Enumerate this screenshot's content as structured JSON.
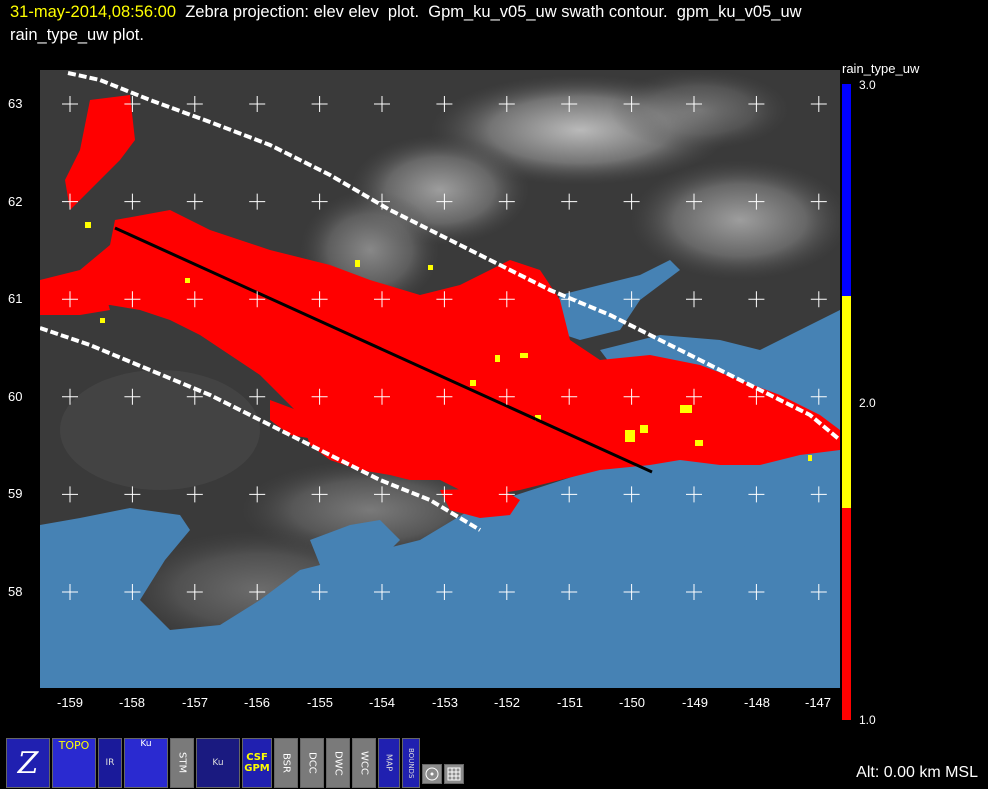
{
  "header": {
    "timestamp": "31-may-2014,08:56:00",
    "title_rest": "  Zebra projection: elev elev  plot.  Gpm_ku_v05_uw swath contour.  gpm_ku_v05_uw",
    "title_line2": "rain_type_uw  plot."
  },
  "map": {
    "lat_labels": [
      "63",
      "62",
      "61",
      "60",
      "59",
      "58"
    ],
    "lon_labels": [
      "-159",
      "-158",
      "-157",
      "-156",
      "-155",
      "-154",
      "-153",
      "-152",
      "-151",
      "-150",
      "-149",
      "-148",
      "-147"
    ],
    "colors": {
      "land": "#3a3a3a",
      "water": "#4682b4",
      "rain": "#ff0000",
      "convective": "#ffff00",
      "swath": "#ffffff",
      "track": "#000000"
    }
  },
  "colorbar": {
    "title": "rain_type_uw",
    "labels": [
      "3.0",
      "2.0",
      "1.0"
    ],
    "colors": [
      "#0000ff",
      "#ffff00",
      "#ff0000"
    ]
  },
  "toolbar": {
    "buttons": [
      {
        "icon": "zebra-logo-icon",
        "text": "Z"
      },
      {
        "icon": "topo-icon",
        "text": "TOPO"
      },
      {
        "icon": "ir-satellite-icon",
        "text": "IR"
      },
      {
        "icon": "ku-band-icon",
        "text": "Ku"
      },
      {
        "icon": "stm-icon",
        "text": "STM"
      },
      {
        "icon": "ku-sat-icon",
        "text": "Ku"
      },
      {
        "icon": "csf-gpm-icon",
        "text": "CSF GPM"
      },
      {
        "icon": "bsr-icon",
        "text": "BSR"
      },
      {
        "icon": "dcc-icon",
        "text": "DCC"
      },
      {
        "icon": "dwc-icon",
        "text": "DWC"
      },
      {
        "icon": "wcc-icon",
        "text": "WCC"
      },
      {
        "icon": "us-map-icon",
        "text": "MAP"
      },
      {
        "icon": "bounds-icon",
        "text": "BOUNDS"
      }
    ]
  },
  "status": {
    "altitude": "Alt: 0.00 km MSL"
  }
}
